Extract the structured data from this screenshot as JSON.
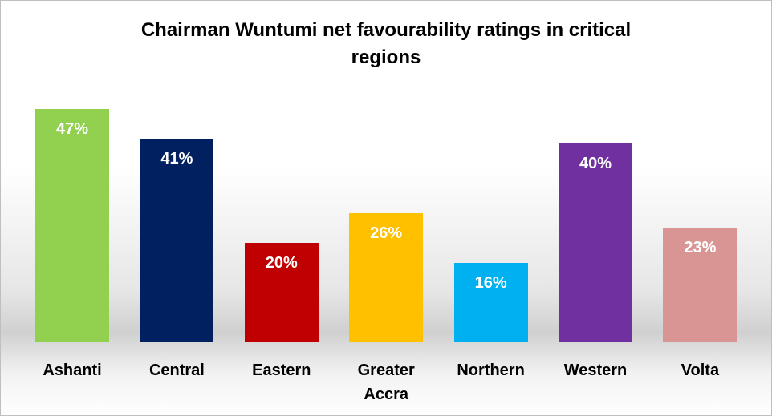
{
  "chart_data": {
    "type": "bar",
    "title": "Chairman Wuntumi net favourability ratings in critical regions",
    "categories": [
      "Ashanti",
      "Central",
      "Eastern",
      "Greater Accra",
      "Northern",
      "Western",
      "Volta"
    ],
    "values": [
      47,
      41,
      20,
      26,
      16,
      40,
      23
    ],
    "value_labels": [
      "47%",
      "41%",
      "20%",
      "26%",
      "16%",
      "40%",
      "23%"
    ],
    "colors": [
      "#92d050",
      "#002060",
      "#c00000",
      "#ffc000",
      "#00b0f0",
      "#7030a0",
      "#d99594"
    ]
  }
}
